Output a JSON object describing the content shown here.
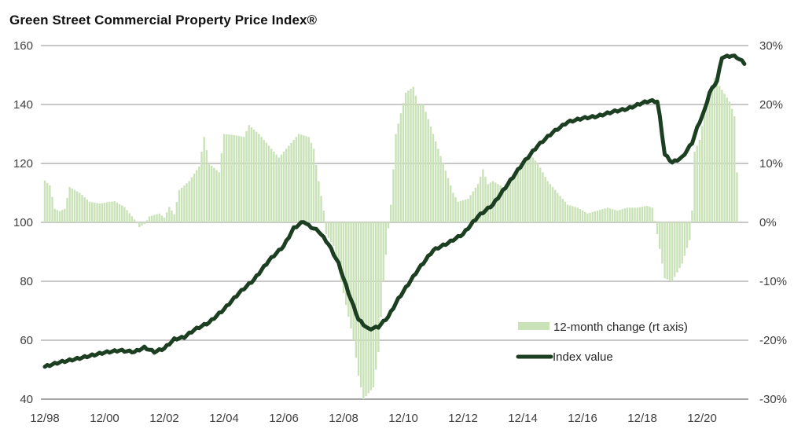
{
  "chart_data": {
    "type": "bar+line",
    "title": "Green Street Commercial Property Price Index®",
    "xlabel": "",
    "ylabel_left": "",
    "ylabel_right": "",
    "x_start": "12/98",
    "x_end": "06/22",
    "x_ticks": [
      "12/98",
      "12/00",
      "12/02",
      "12/04",
      "12/06",
      "12/08",
      "12/10",
      "12/12",
      "12/14",
      "12/16",
      "12/18",
      "12/20"
    ],
    "y_left": {
      "range": [
        40,
        160
      ],
      "ticks": [
        "40",
        "60",
        "80",
        "100",
        "120",
        "140",
        "160"
      ]
    },
    "y_right": {
      "range": [
        -30,
        30
      ],
      "ticks": [
        "-30%",
        "-20%",
        "-10%",
        "0%",
        "10%",
        "20%",
        "30%"
      ]
    },
    "grid": true,
    "legend_position": "bottom-right",
    "colors": {
      "bars": "#c9e2b8",
      "line": "#1c3f22",
      "grid": "#a6a6a6"
    },
    "series": [
      {
        "name": "12-month change (rt axis)",
        "type": "bar",
        "axis": "right",
        "unit": "%",
        "note": "monthly values, months since 12/98",
        "points": [
          [
            0,
            7.1
          ],
          [
            2,
            6.3
          ],
          [
            4,
            2.3
          ],
          [
            6,
            1.9
          ],
          [
            8,
            2.3
          ],
          [
            10,
            6.0
          ],
          [
            14,
            5.0
          ],
          [
            18,
            3.5
          ],
          [
            22,
            3.2
          ],
          [
            28,
            3.6
          ],
          [
            32,
            2.6
          ],
          [
            36,
            0.5
          ],
          [
            38,
            -0.8
          ],
          [
            40,
            -0.3
          ],
          [
            42,
            1.0
          ],
          [
            46,
            1.5
          ],
          [
            48,
            0.8
          ],
          [
            50,
            2.6
          ],
          [
            52,
            1.4
          ],
          [
            54,
            5.5
          ],
          [
            58,
            7.0
          ],
          [
            62,
            9.5
          ],
          [
            64,
            14.5
          ],
          [
            66,
            10
          ],
          [
            70,
            8.5
          ],
          [
            72,
            15
          ],
          [
            76,
            14.8
          ],
          [
            80,
            14.5
          ],
          [
            82,
            16.5
          ],
          [
            86,
            15
          ],
          [
            90,
            13
          ],
          [
            94,
            11
          ],
          [
            98,
            13
          ],
          [
            102,
            15
          ],
          [
            106,
            14.5
          ],
          [
            108,
            12.5
          ],
          [
            110,
            7.0
          ],
          [
            112,
            2.0
          ],
          [
            113,
            -2
          ],
          [
            116,
            -4
          ],
          [
            120,
            -12
          ],
          [
            124,
            -20
          ],
          [
            126,
            -26
          ],
          [
            128,
            -30
          ],
          [
            132,
            -28
          ],
          [
            134,
            -22
          ],
          [
            136,
            -10
          ],
          [
            138,
            -1
          ],
          [
            139,
            3
          ],
          [
            141,
            15
          ],
          [
            145,
            22
          ],
          [
            148,
            23
          ],
          [
            150,
            20
          ],
          [
            152,
            20
          ],
          [
            156,
            15
          ],
          [
            160,
            10
          ],
          [
            164,
            5
          ],
          [
            166,
            3.5
          ],
          [
            170,
            4
          ],
          [
            174,
            6.5
          ],
          [
            176,
            9
          ],
          [
            178,
            6.5
          ],
          [
            180,
            7
          ],
          [
            184,
            6
          ],
          [
            188,
            7.5
          ],
          [
            192,
            10.5
          ],
          [
            195,
            11.5
          ],
          [
            198,
            10
          ],
          [
            202,
            7
          ],
          [
            206,
            5
          ],
          [
            210,
            3
          ],
          [
            214,
            2.5
          ],
          [
            218,
            1.5
          ],
          [
            222,
            2
          ],
          [
            226,
            2.5
          ],
          [
            230,
            2
          ],
          [
            234,
            2.5
          ],
          [
            238,
            2.5
          ],
          [
            242,
            2.8
          ],
          [
            244,
            2.5
          ],
          [
            246,
            -2
          ],
          [
            249,
            -9.5
          ],
          [
            252,
            -10
          ],
          [
            256,
            -7
          ],
          [
            259,
            -3
          ],
          [
            260,
            2
          ],
          [
            261,
            12
          ],
          [
            263,
            14
          ],
          [
            266,
            21
          ],
          [
            269,
            24.5
          ],
          [
            272,
            22.5
          ],
          [
            275,
            20.5
          ],
          [
            277,
            18
          ],
          [
            278,
            8.5
          ]
        ]
      },
      {
        "name": "Index value",
        "type": "line",
        "axis": "left",
        "note": "monthly values, months since 12/98",
        "points": [
          [
            0,
            51
          ],
          [
            6,
            52.5
          ],
          [
            12,
            53.5
          ],
          [
            24,
            55.8
          ],
          [
            30,
            56.5
          ],
          [
            36,
            56
          ],
          [
            40,
            57.5
          ],
          [
            44,
            56
          ],
          [
            48,
            57.2
          ],
          [
            52,
            60.3
          ],
          [
            56,
            61
          ],
          [
            60,
            63.5
          ],
          [
            66,
            66
          ],
          [
            72,
            70.5
          ],
          [
            78,
            76
          ],
          [
            84,
            80.5
          ],
          [
            90,
            87
          ],
          [
            96,
            92
          ],
          [
            100,
            98
          ],
          [
            104,
            100.3
          ],
          [
            106,
            98.8
          ],
          [
            110,
            97
          ],
          [
            114,
            92.5
          ],
          [
            118,
            86
          ],
          [
            122,
            76
          ],
          [
            126,
            67
          ],
          [
            130,
            63.7
          ],
          [
            134,
            64.5
          ],
          [
            138,
            68
          ],
          [
            142,
            74
          ],
          [
            146,
            79
          ],
          [
            150,
            84
          ],
          [
            156,
            90.5
          ],
          [
            162,
            93
          ],
          [
            168,
            96
          ],
          [
            174,
            102
          ],
          [
            180,
            106
          ],
          [
            186,
            113
          ],
          [
            192,
            120
          ],
          [
            198,
            126
          ],
          [
            204,
            130.5
          ],
          [
            210,
            134
          ],
          [
            216,
            135.3
          ],
          [
            222,
            136
          ],
          [
            228,
            137.5
          ],
          [
            234,
            138.5
          ],
          [
            240,
            140.5
          ],
          [
            243,
            141.2
          ],
          [
            246,
            141
          ],
          [
            247,
            136
          ],
          [
            249,
            123
          ],
          [
            252,
            120.3
          ],
          [
            256,
            122
          ],
          [
            260,
            127
          ],
          [
            262,
            132
          ],
          [
            265,
            138
          ],
          [
            267,
            144
          ],
          [
            270,
            148
          ],
          [
            272,
            156
          ],
          [
            276,
            156.5
          ],
          [
            278,
            156
          ],
          [
            281,
            154
          ]
        ]
      }
    ],
    "legend": [
      {
        "label": "12-month change (rt axis)",
        "kind": "bar"
      },
      {
        "label": "Index value",
        "kind": "line"
      }
    ]
  }
}
